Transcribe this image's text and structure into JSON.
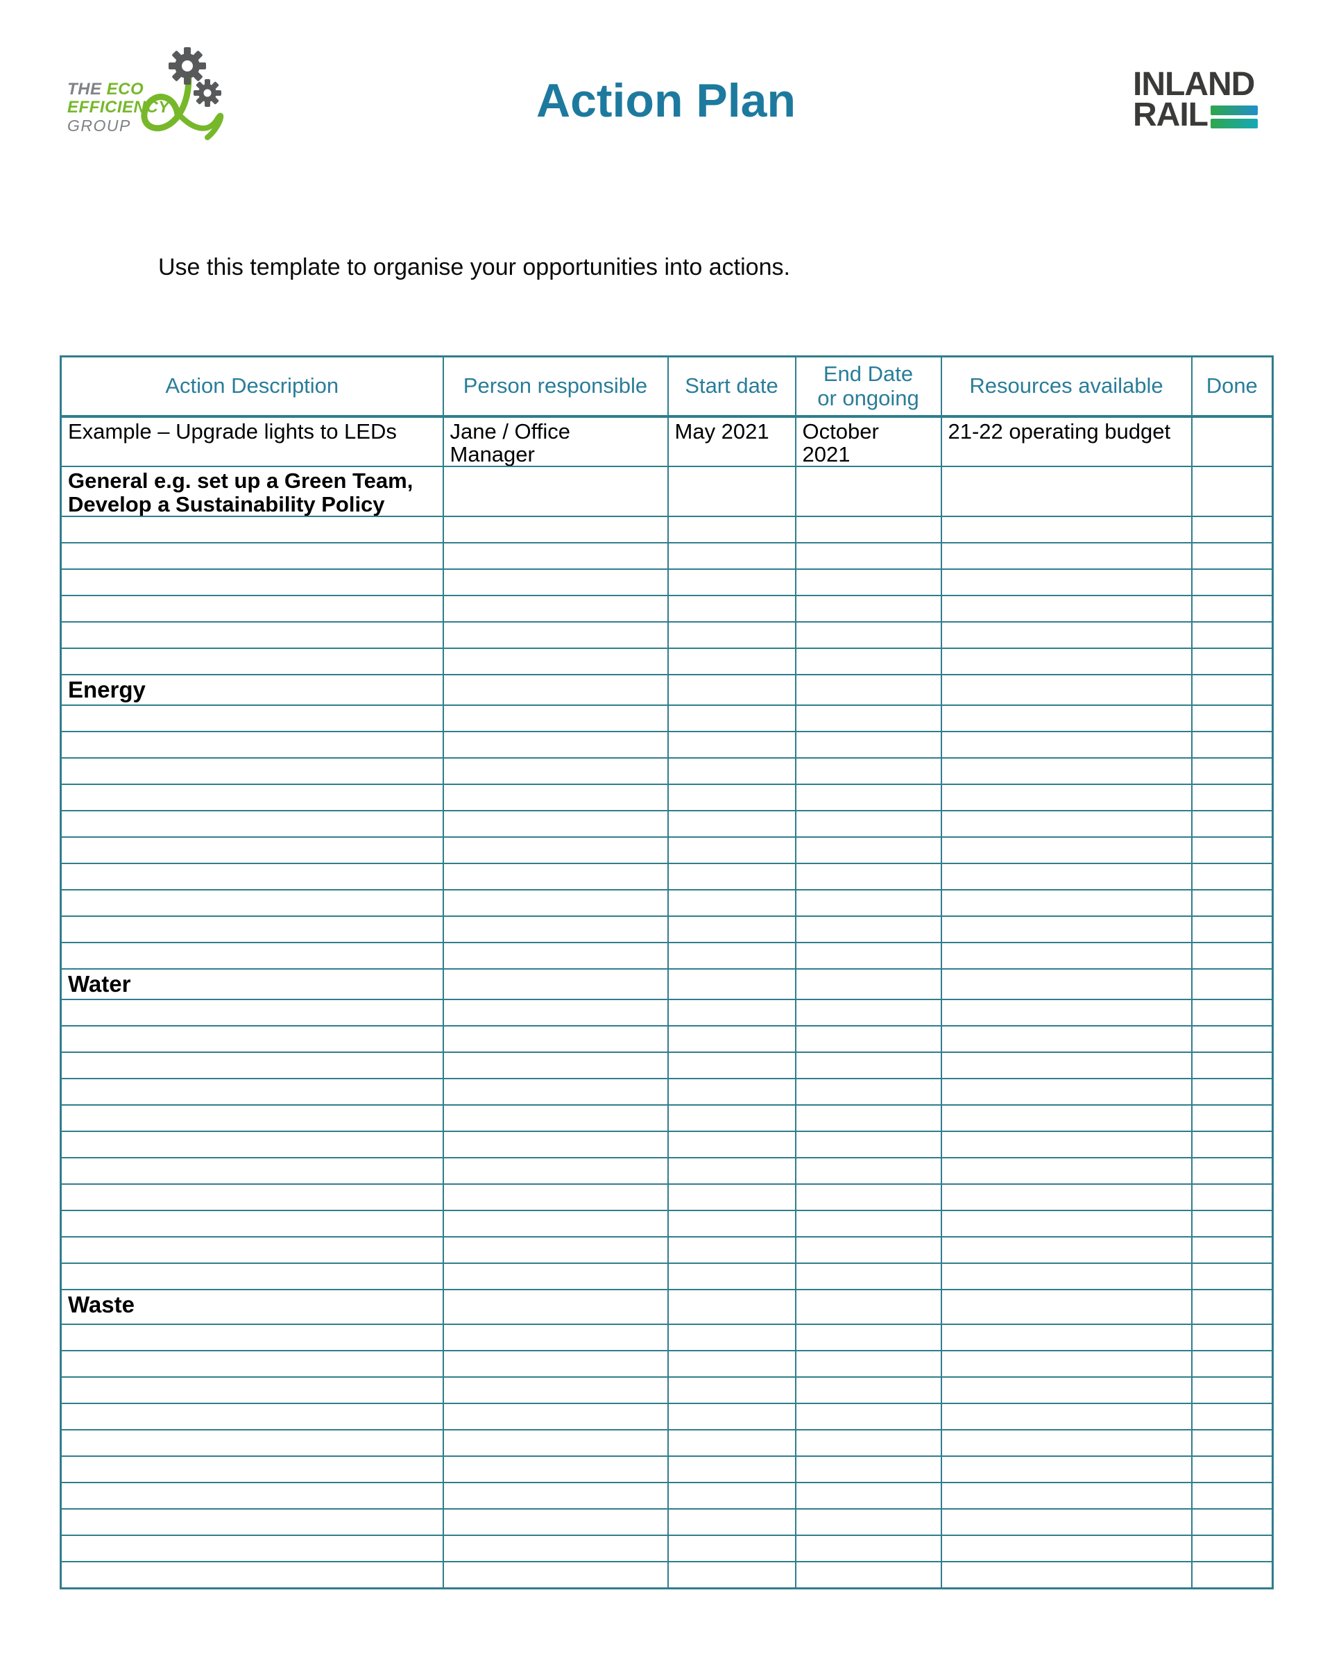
{
  "colors": {
    "title_teal": "#1d7a9e",
    "table_border": "#2f7e8c",
    "header_text": "#2a7d99",
    "logo_green": "#76b82a",
    "logo_gray": "#818285",
    "gear_gray": "#58595b",
    "inland_text": "#3a3a39",
    "bar_green": "#2fa64c",
    "bar_blue": "#2090c8",
    "bar_teal": "#15a8b8"
  },
  "header": {
    "title": "Action Plan",
    "eco_logo": {
      "word_the": "THE",
      "word_eco": "ECO",
      "word_efficiency": "EFFICIENCY",
      "word_group": "GROUP"
    },
    "inland_rail_logo": {
      "line1": "INLAND",
      "line2": "RAIL"
    }
  },
  "intro": "Use this template to organise your opportunities into actions.",
  "table": {
    "headers": [
      "Action Description",
      "Person responsible",
      "Start date",
      "End Date\nor ongoing",
      "Resources available",
      "Done"
    ],
    "rows": [
      {
        "name": "example-row",
        "type": "example",
        "cells": [
          "Example – Upgrade lights to LEDs",
          "Jane / Office\nManager",
          "May 2021",
          "October\n2021",
          "21-22 operating budget",
          ""
        ]
      },
      {
        "name": "general-row",
        "type": "subheading",
        "cells": [
          "General e.g. set up a Green Team,\nDevelop a Sustainability Policy",
          "",
          "",
          "",
          "",
          ""
        ]
      },
      {
        "name": "empty-row",
        "type": "empty"
      },
      {
        "name": "empty-row",
        "type": "empty"
      },
      {
        "name": "empty-row",
        "type": "empty"
      },
      {
        "name": "empty-row",
        "type": "empty"
      },
      {
        "name": "empty-row",
        "type": "empty"
      },
      {
        "name": "empty-row",
        "type": "empty"
      },
      {
        "name": "energy-section-row",
        "type": "section",
        "cells": [
          "Energy",
          "",
          "",
          "",
          "",
          ""
        ]
      },
      {
        "name": "empty-row",
        "type": "empty"
      },
      {
        "name": "empty-row",
        "type": "empty"
      },
      {
        "name": "empty-row",
        "type": "empty"
      },
      {
        "name": "empty-row",
        "type": "empty"
      },
      {
        "name": "empty-row",
        "type": "empty"
      },
      {
        "name": "empty-row",
        "type": "empty"
      },
      {
        "name": "empty-row",
        "type": "empty"
      },
      {
        "name": "empty-row",
        "type": "empty"
      },
      {
        "name": "empty-row",
        "type": "empty"
      },
      {
        "name": "empty-row",
        "type": "empty"
      },
      {
        "name": "water-section-row",
        "type": "section",
        "cells": [
          "Water",
          "",
          "",
          "",
          "",
          ""
        ]
      },
      {
        "name": "empty-row",
        "type": "empty"
      },
      {
        "name": "empty-row",
        "type": "empty"
      },
      {
        "name": "empty-row",
        "type": "empty"
      },
      {
        "name": "empty-row",
        "type": "empty"
      },
      {
        "name": "empty-row",
        "type": "empty"
      },
      {
        "name": "empty-row",
        "type": "empty"
      },
      {
        "name": "empty-row",
        "type": "empty"
      },
      {
        "name": "empty-row",
        "type": "empty"
      },
      {
        "name": "empty-row",
        "type": "empty"
      },
      {
        "name": "empty-row",
        "type": "empty"
      },
      {
        "name": "empty-row",
        "type": "empty"
      },
      {
        "name": "waste-section-row",
        "type": "section",
        "cells": [
          "Waste",
          "",
          "",
          "",
          "",
          ""
        ]
      },
      {
        "name": "empty-row",
        "type": "empty"
      },
      {
        "name": "empty-row",
        "type": "empty"
      },
      {
        "name": "empty-row",
        "type": "empty"
      },
      {
        "name": "empty-row",
        "type": "empty"
      },
      {
        "name": "empty-row",
        "type": "empty"
      },
      {
        "name": "empty-row",
        "type": "empty"
      },
      {
        "name": "empty-row",
        "type": "empty"
      },
      {
        "name": "empty-row",
        "type": "empty"
      },
      {
        "name": "empty-row",
        "type": "empty"
      },
      {
        "name": "empty-row",
        "type": "empty"
      }
    ]
  }
}
